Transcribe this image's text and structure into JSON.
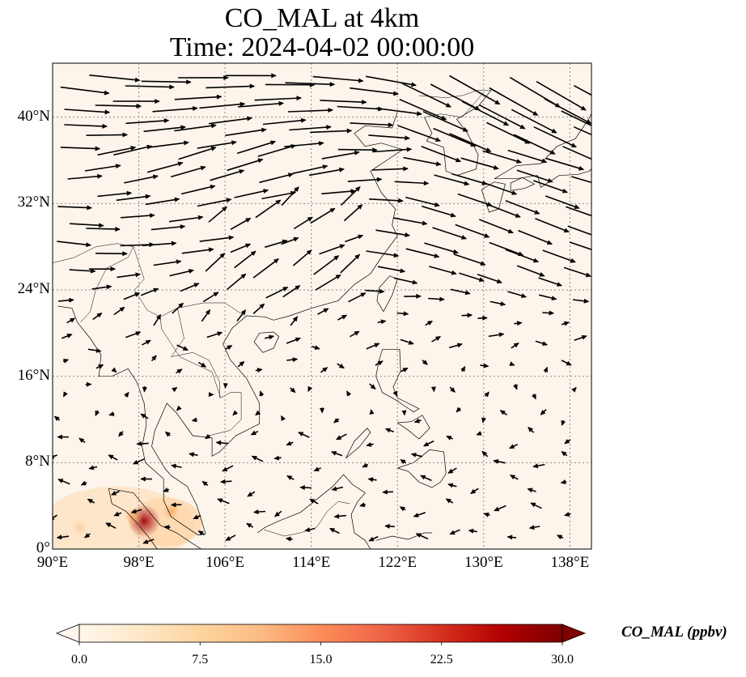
{
  "title": {
    "line1": "CO_MAL at 4km",
    "line2": "Time: 2024-04-02 00:00:00"
  },
  "map": {
    "projection": "PlateCarree",
    "extent_lon": [
      90,
      140
    ],
    "extent_lat": [
      0,
      45
    ],
    "gridlines": "dotted",
    "lat_ticks": [
      {
        "value": 40,
        "label": "40°N"
      },
      {
        "value": 32,
        "label": "32°N"
      },
      {
        "value": 24,
        "label": "24°N"
      },
      {
        "value": 16,
        "label": "16°N"
      },
      {
        "value": 8,
        "label": "8°N"
      },
      {
        "value": 0,
        "label": "0°"
      }
    ],
    "lon_ticks": [
      {
        "value": 90,
        "label": "90°E"
      },
      {
        "value": 98,
        "label": "98°E"
      },
      {
        "value": 106,
        "label": "106°E"
      },
      {
        "value": 114,
        "label": "114°E"
      },
      {
        "value": 122,
        "label": "122°E"
      },
      {
        "value": 130,
        "label": "130°E"
      },
      {
        "value": 138,
        "label": "138°E"
      }
    ],
    "background_color": "#fdf5eb",
    "hotspots": [
      {
        "lon": 98.5,
        "lat": 2.6,
        "value": 28,
        "color": "#a50f15"
      },
      {
        "lon": 97.5,
        "lat": 3.0,
        "value": 10,
        "color": "#fdae6b"
      },
      {
        "lon": 92.5,
        "lat": 2.0,
        "value": 6,
        "color": "#fdd0a2"
      },
      {
        "lon": 101.0,
        "lat": 3.5,
        "value": 9,
        "color": "#fdae6b"
      }
    ],
    "wind_field": "westerly flow north of ~20°N, weak easterly flow in the tropics"
  },
  "colorbar": {
    "label": "CO_MAL (ppbv)",
    "min": 0.0,
    "max": 30.0,
    "extend": "both",
    "colormap": "OrRd",
    "ticks": [
      {
        "value": 0.0,
        "label": "0.0"
      },
      {
        "value": 7.5,
        "label": "7.5"
      },
      {
        "value": 15.0,
        "label": "15.0"
      },
      {
        "value": 22.5,
        "label": "22.5"
      },
      {
        "value": 30.0,
        "label": "30.0"
      }
    ],
    "colors": [
      "#fff7ec",
      "#fee8c8",
      "#fdd49e",
      "#fdbb84",
      "#fc8d59",
      "#ef6548",
      "#d7301f",
      "#b30000",
      "#7f0000"
    ]
  }
}
